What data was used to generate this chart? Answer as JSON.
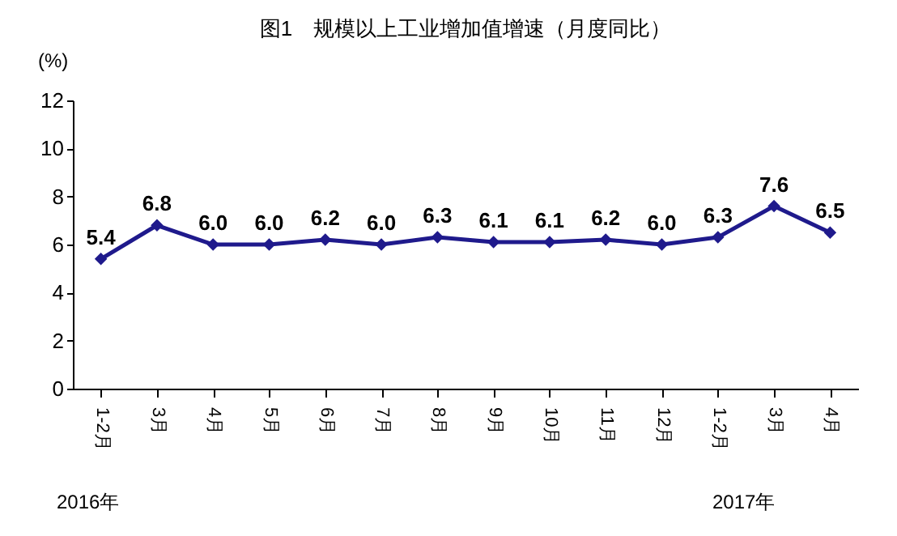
{
  "chart_data": {
    "type": "line",
    "title": "图1　规模以上工业增加值增速（月度同比）",
    "ylabel": "(%)",
    "categories": [
      "1-2月",
      "3月",
      "4月",
      "5月",
      "6月",
      "7月",
      "8月",
      "9月",
      "10月",
      "11月",
      "12月",
      "1-2月",
      "3月",
      "4月"
    ],
    "series": [
      {
        "color": "#1f1a8c",
        "values": [
          5.4,
          6.8,
          6.0,
          6.0,
          6.2,
          6.0,
          6.3,
          6.1,
          6.1,
          6.2,
          6.0,
          6.3,
          7.6,
          6.5
        ],
        "value_labels": [
          "5.4",
          "6.8",
          "6.0",
          "6.0",
          "6.2",
          "6.0",
          "6.3",
          "6.1",
          "6.1",
          "6.2",
          "6.0",
          "6.3",
          "7.6",
          "6.5"
        ]
      }
    ],
    "ylim": [
      0,
      12
    ],
    "yticks": [
      0,
      2,
      4,
      6,
      8,
      10,
      12
    ],
    "grid": false,
    "marker": "diamond",
    "line_style": "solid",
    "annotations": [
      "2016年",
      "2017年"
    ]
  }
}
